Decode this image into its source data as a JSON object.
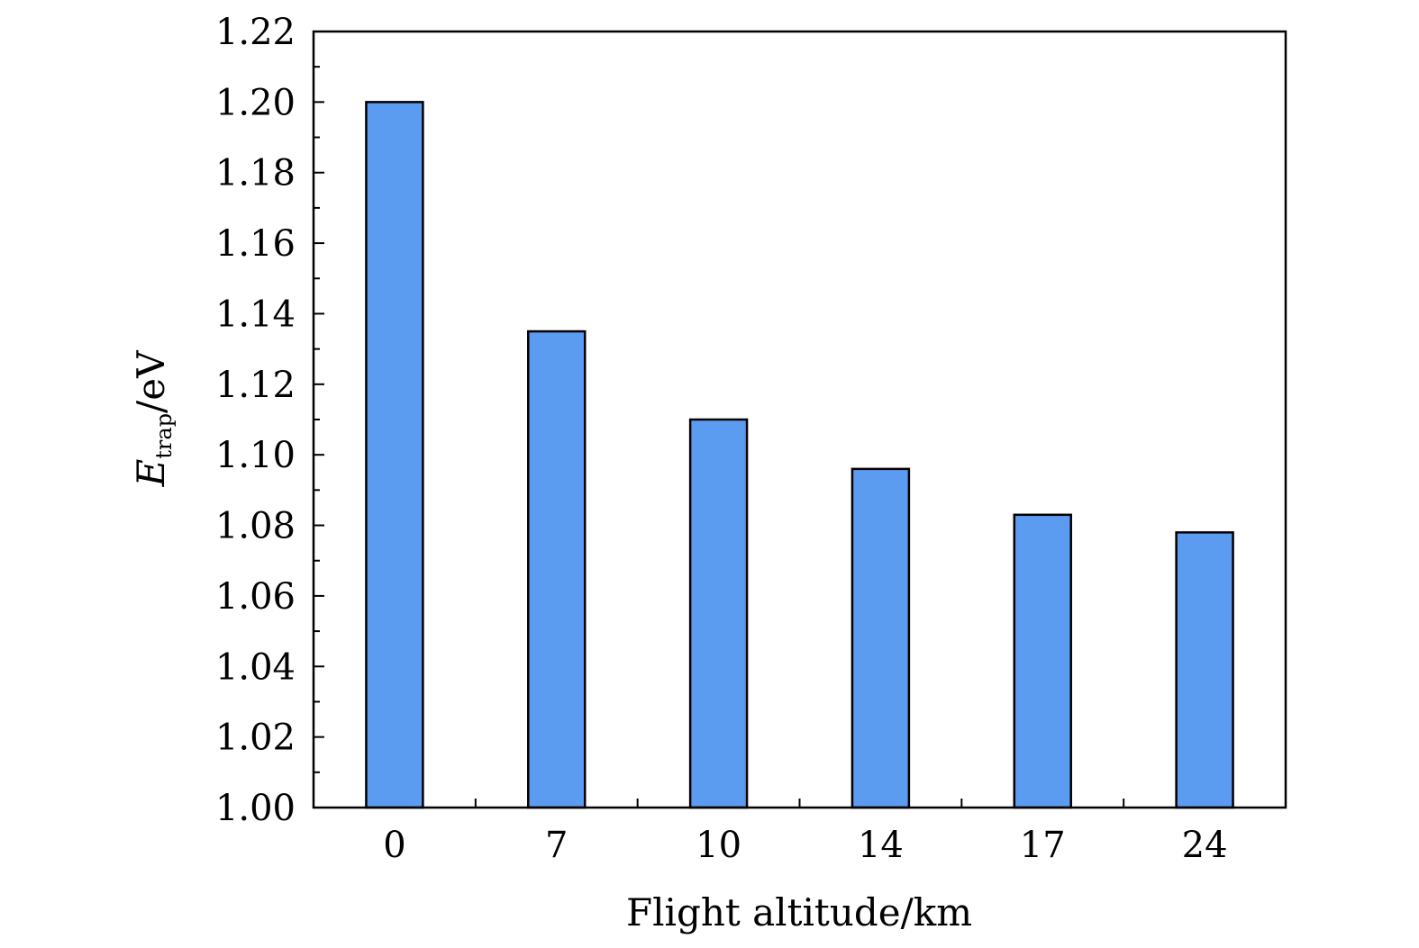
{
  "chart_data": {
    "type": "bar",
    "categories": [
      "0",
      "7",
      "10",
      "14",
      "17",
      "24"
    ],
    "values": [
      1.2,
      1.135,
      1.11,
      1.096,
      1.083,
      1.078
    ],
    "xlabel": "Flight altitude/km",
    "ylabel": {
      "symbol": "E",
      "subscript": "trap",
      "unit": "/eV"
    },
    "ylim": [
      1.0,
      1.22
    ],
    "yticks": [
      "1.00",
      "1.02",
      "1.04",
      "1.06",
      "1.08",
      "1.10",
      "1.12",
      "1.14",
      "1.16",
      "1.18",
      "1.20",
      "1.22"
    ],
    "grid": false,
    "bar_color": "#5b9bf0",
    "edge_color": "#000000"
  }
}
